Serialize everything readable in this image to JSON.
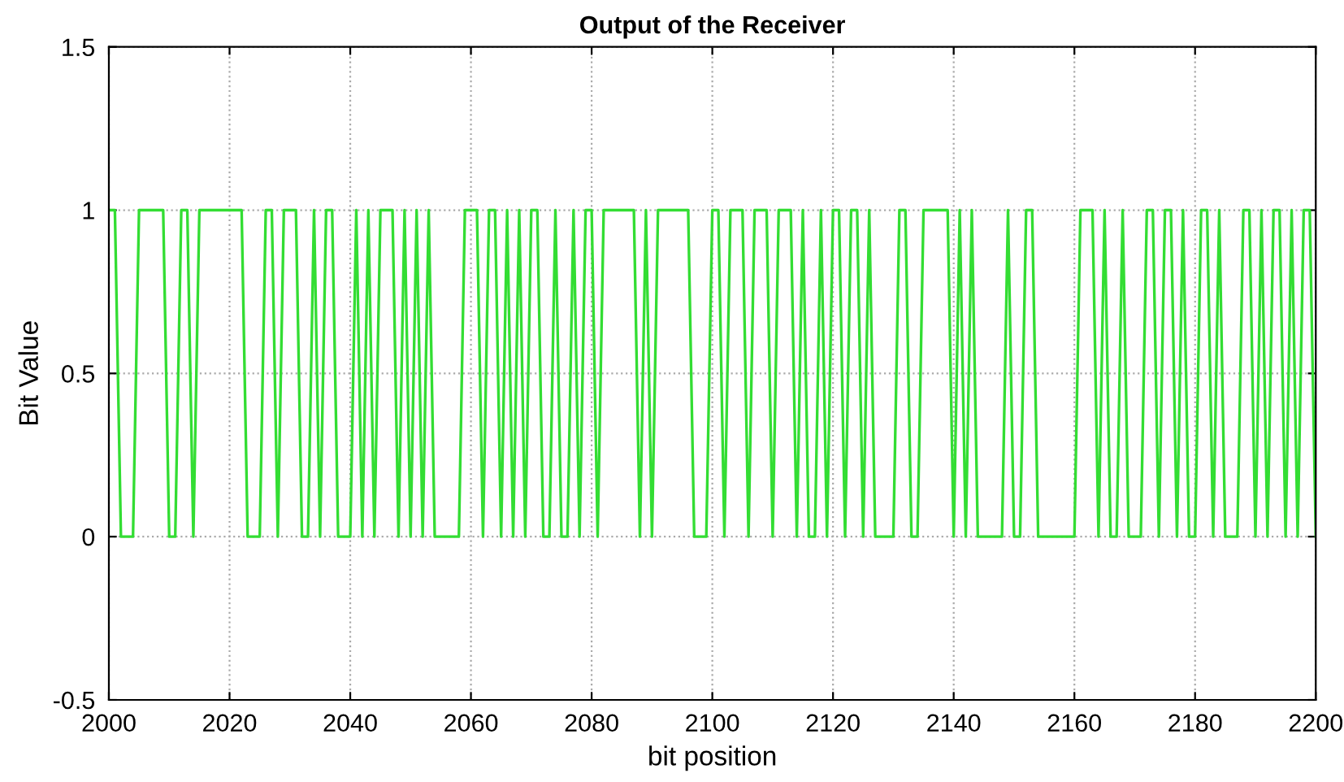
{
  "chart_data": {
    "type": "line",
    "title": "Output of the Receiver",
    "xlabel": "bit position",
    "ylabel": "Bit Value",
    "x": [
      2000,
      2001,
      2002,
      2003,
      2004,
      2005,
      2006,
      2007,
      2008,
      2009,
      2010,
      2011,
      2012,
      2013,
      2014,
      2015,
      2016,
      2017,
      2018,
      2019,
      2020,
      2021,
      2022,
      2023,
      2024,
      2025,
      2026,
      2027,
      2028,
      2029,
      2030,
      2031,
      2032,
      2033,
      2034,
      2035,
      2036,
      2037,
      2038,
      2039,
      2040,
      2041,
      2042,
      2043,
      2044,
      2045,
      2046,
      2047,
      2048,
      2049,
      2050,
      2051,
      2052,
      2053,
      2054,
      2055,
      2056,
      2057,
      2058,
      2059,
      2060,
      2061,
      2062,
      2063,
      2064,
      2065,
      2066,
      2067,
      2068,
      2069,
      2070,
      2071,
      2072,
      2073,
      2074,
      2075,
      2076,
      2077,
      2078,
      2079,
      2080,
      2081,
      2082,
      2083,
      2084,
      2085,
      2086,
      2087,
      2088,
      2089,
      2090,
      2091,
      2092,
      2093,
      2094,
      2095,
      2096,
      2097,
      2098,
      2099,
      2100,
      2101,
      2102,
      2103,
      2104,
      2105,
      2106,
      2107,
      2108,
      2109,
      2110,
      2111,
      2112,
      2113,
      2114,
      2115,
      2116,
      2117,
      2118,
      2119,
      2120,
      2121,
      2122,
      2123,
      2124,
      2125,
      2126,
      2127,
      2128,
      2129,
      2130,
      2131,
      2132,
      2133,
      2134,
      2135,
      2136,
      2137,
      2138,
      2139,
      2140,
      2141,
      2142,
      2143,
      2144,
      2145,
      2146,
      2147,
      2148,
      2149,
      2150,
      2151,
      2152,
      2153,
      2154,
      2155,
      2156,
      2157,
      2158,
      2159,
      2160,
      2161,
      2162,
      2163,
      2164,
      2165,
      2166,
      2167,
      2168,
      2169,
      2170,
      2171,
      2172,
      2173,
      2174,
      2175,
      2176,
      2177,
      2178,
      2179,
      2180,
      2181,
      2182,
      2183,
      2184,
      2185,
      2186,
      2187,
      2188,
      2189,
      2190,
      2191,
      2192,
      2193,
      2194,
      2195,
      2196,
      2197,
      2198,
      2199,
      2200
    ],
    "series": [
      {
        "color": "#33dd33",
        "values": [
          1,
          1,
          0,
          0,
          0,
          1,
          1,
          1,
          1,
          1,
          0,
          0,
          1,
          1,
          0,
          1,
          1,
          1,
          1,
          1,
          1,
          1,
          1,
          0,
          0,
          0,
          1,
          1,
          0,
          1,
          1,
          1,
          0,
          0,
          1,
          0,
          1,
          1,
          0,
          0,
          0,
          1,
          0,
          1,
          0,
          1,
          1,
          1,
          0,
          1,
          0,
          1,
          0,
          1,
          0,
          0,
          0,
          0,
          0,
          1,
          1,
          1,
          0,
          1,
          1,
          0,
          1,
          0,
          1,
          0,
          1,
          1,
          0,
          0,
          1,
          0,
          0,
          1,
          0,
          1,
          1,
          0,
          1,
          1,
          1,
          1,
          1,
          1,
          0,
          1,
          0,
          1,
          1,
          1,
          1,
          1,
          1,
          0,
          0,
          0,
          1,
          1,
          0,
          1,
          1,
          1,
          0,
          1,
          1,
          1,
          0,
          1,
          1,
          1,
          0,
          1,
          0,
          0,
          1,
          0,
          1,
          1,
          0,
          1,
          1,
          0,
          1,
          0,
          0,
          0,
          0,
          1,
          1,
          0,
          0,
          1,
          1,
          1,
          1,
          1,
          0,
          1,
          0,
          1,
          0,
          0,
          0,
          0,
          0,
          1,
          0,
          0,
          1,
          1,
          0,
          0,
          0,
          0,
          0,
          0,
          0,
          1,
          1,
          1,
          0,
          1,
          0,
          0,
          1,
          0,
          0,
          0,
          1,
          1,
          0,
          1,
          1,
          0,
          1,
          0,
          0,
          1,
          1,
          0,
          1,
          0,
          0,
          0,
          1,
          1,
          0,
          1,
          0,
          1,
          1,
          0,
          1,
          0,
          1,
          1,
          0
        ]
      }
    ],
    "xlim": [
      2000,
      2200
    ],
    "xticks": [
      2000,
      2020,
      2040,
      2060,
      2080,
      2100,
      2120,
      2140,
      2160,
      2180,
      2200
    ],
    "ylim": [
      -0.5,
      1.5
    ],
    "yticks": [
      -0.5,
      0,
      0.5,
      1,
      1.5
    ],
    "grid": true,
    "marker": "none",
    "line_style": "solid"
  }
}
